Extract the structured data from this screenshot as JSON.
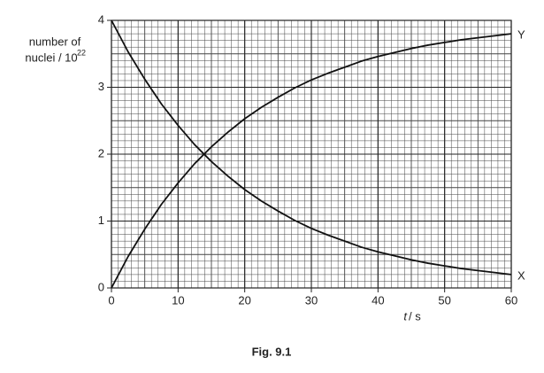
{
  "chart_data": {
    "type": "line",
    "y_label": [
      "number of",
      "nuclei / 10",
      "22"
    ],
    "x_label": [
      "t",
      "/ s"
    ],
    "caption": "Fig. 9.1",
    "x": [
      0,
      2.5,
      5,
      7.5,
      10,
      12.5,
      15,
      17.5,
      20,
      22.5,
      25,
      27.5,
      30,
      32.5,
      35,
      37.5,
      40,
      42.5,
      45,
      47.5,
      50,
      52.5,
      55,
      57.5,
      60
    ],
    "series": [
      {
        "name": "X",
        "color": "#111111",
        "values": [
          4,
          3.53,
          3.12,
          2.75,
          2.43,
          2.14,
          1.89,
          1.67,
          1.47,
          1.3,
          1.15,
          1.01,
          0.89,
          0.79,
          0.7,
          0.61,
          0.54,
          0.48,
          0.42,
          0.37,
          0.33,
          0.29,
          0.26,
          0.23,
          0.2
        ]
      },
      {
        "name": "Y",
        "color": "#111111",
        "values": [
          0,
          0.47,
          0.88,
          1.25,
          1.57,
          1.86,
          2.11,
          2.33,
          2.53,
          2.7,
          2.85,
          2.99,
          3.11,
          3.21,
          3.3,
          3.39,
          3.46,
          3.52,
          3.58,
          3.63,
          3.67,
          3.71,
          3.74,
          3.77,
          3.8
        ]
      }
    ],
    "xlim": [
      0,
      60
    ],
    "xticks": [
      0,
      10,
      20,
      30,
      40,
      50,
      60
    ],
    "ylim": [
      0,
      4
    ],
    "yticks": [
      0,
      1,
      2,
      3,
      4
    ],
    "grid": true
  }
}
